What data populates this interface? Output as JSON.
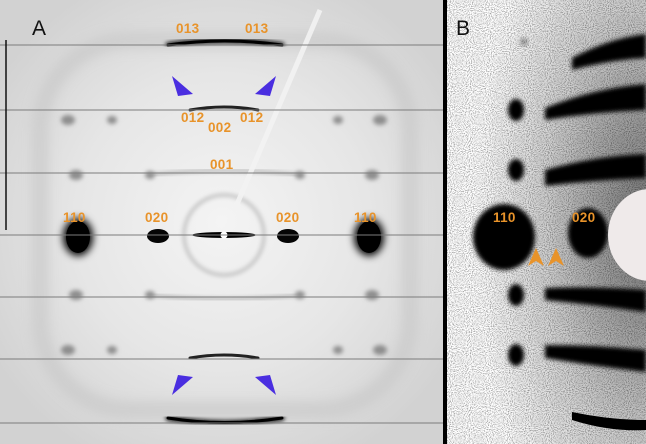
{
  "panels": [
    {
      "letter": "A"
    },
    {
      "letter": "B"
    }
  ],
  "reflections_a": [
    "013",
    "013",
    "012",
    "002",
    "012",
    "001",
    "110",
    "020",
    "020",
    "110"
  ],
  "reflections_b": [
    "110",
    "020"
  ],
  "colors": {
    "label": "#e8932a",
    "arrowhead_blue": "#4a2ee0",
    "arrowhead_orange": "#e8932a",
    "spot": "#0a0a0a",
    "background_a": "#e9e9e9",
    "background_b": "#ffffff"
  }
}
